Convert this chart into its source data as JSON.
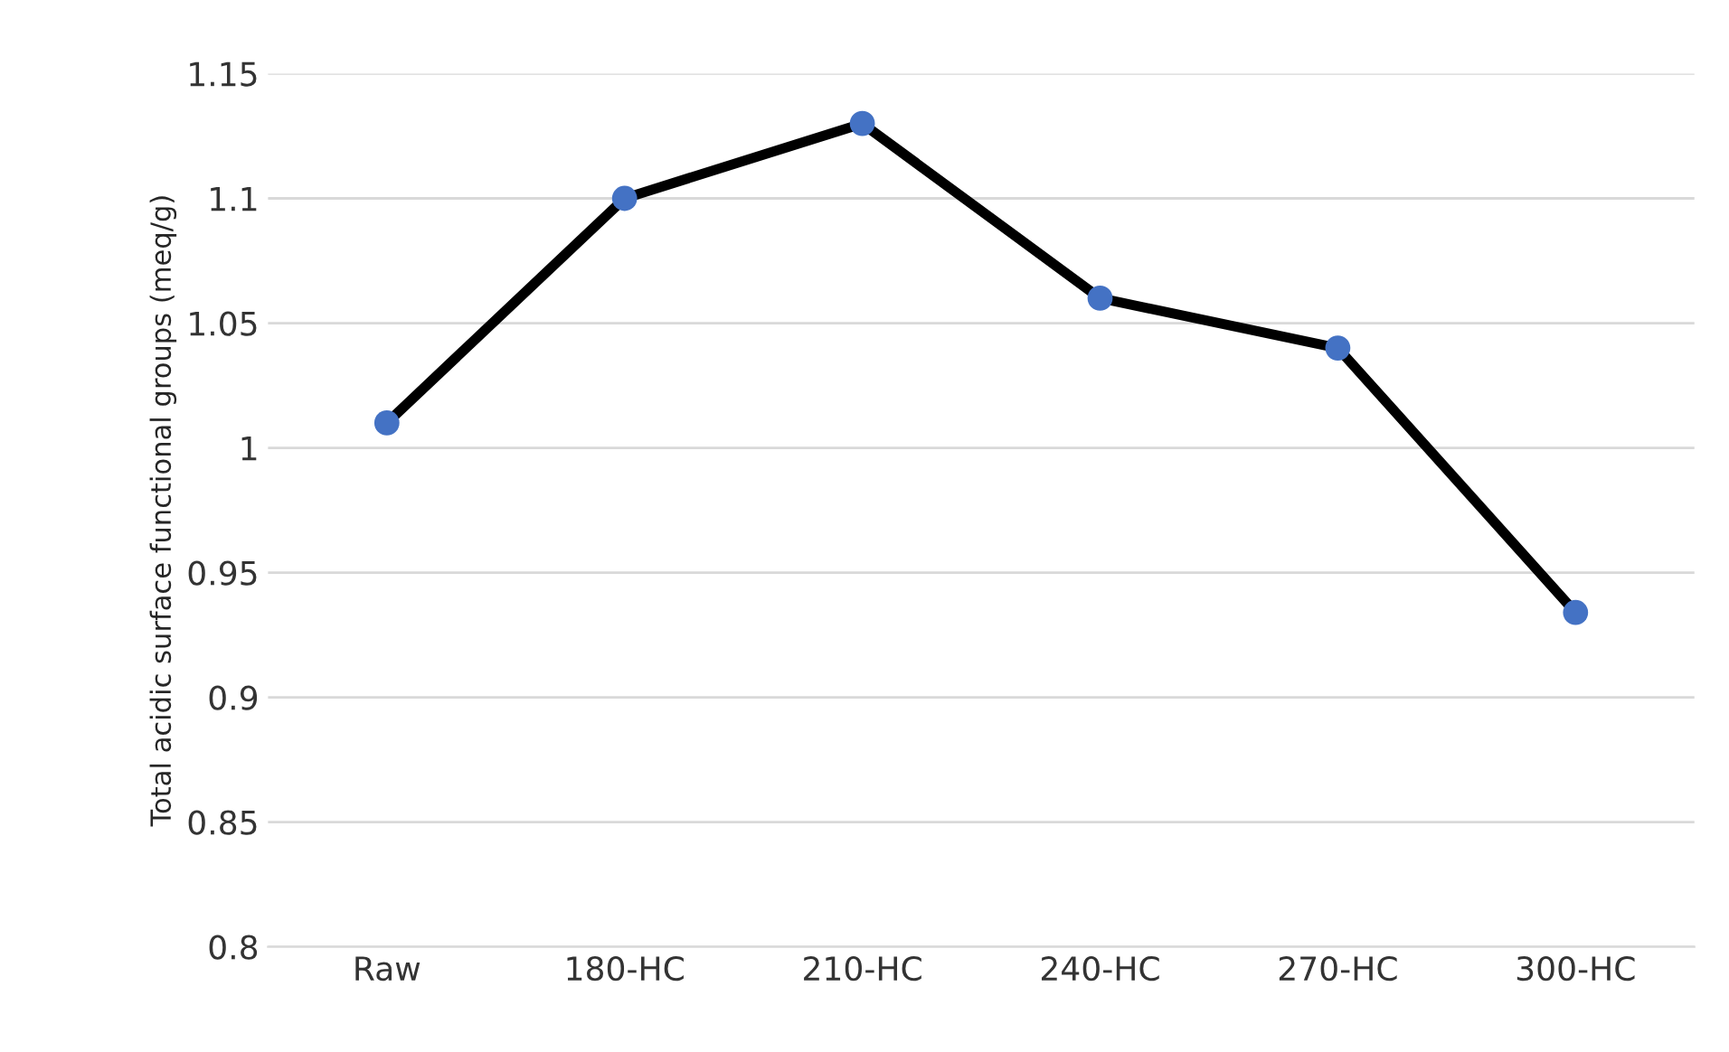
{
  "chart_data": {
    "type": "line",
    "ylabel": "Total acidic surface functional groups (meq/g)",
    "categories": [
      "Raw",
      "180-HC",
      "210-HC",
      "240-HC",
      "270-HC",
      "300-HC"
    ],
    "series": [
      {
        "color": "#000000",
        "colors": [
          "#4472c4",
          "#4472c4",
          "#4472c4",
          "#4472c4",
          "#4472c4",
          "#4472c4"
        ],
        "values": [
          1.01,
          1.1,
          1.13,
          1.06,
          1.04,
          0.934
        ]
      }
    ],
    "ylim": [
      0.8,
      1.15
    ],
    "yticks": [
      {
        "value": 0.8,
        "label": "0.8"
      },
      {
        "value": 0.85,
        "label": "0.85"
      },
      {
        "value": 0.9,
        "label": "0.9"
      },
      {
        "value": 0.95,
        "label": "0.95"
      },
      {
        "value": 1.0,
        "label": "1"
      },
      {
        "value": 1.05,
        "label": "1.05"
      },
      {
        "value": 1.1,
        "label": "1.1"
      },
      {
        "value": 1.15,
        "label": "1.15"
      }
    ],
    "grid": "y",
    "marker": "circle",
    "line_style": "solid",
    "legend": false
  }
}
